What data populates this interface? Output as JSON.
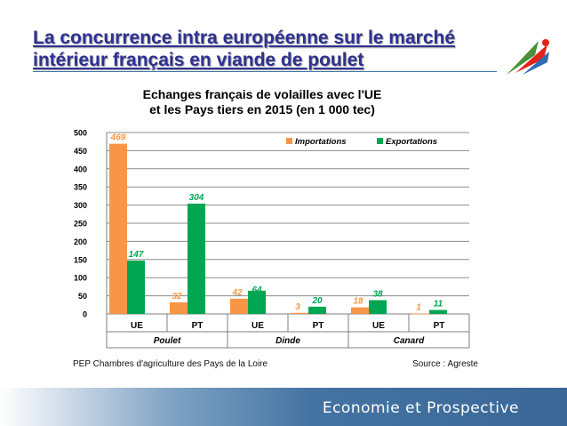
{
  "slide": {
    "title": "La concurrence intra européenne sur le marché intérieur français en viande de poulet",
    "source_left": "PEP Chambres d'agriculture des Pays de la Loire",
    "source_right": "Source : Agreste",
    "banner": "Economie et Prospective"
  },
  "colors": {
    "importations": "#f79646",
    "exportations": "#00a651",
    "title": "#2e3192",
    "banner": "#3a6797"
  },
  "icons": {
    "logo": "chambres-agriculture-logo-icon"
  },
  "chart_data": {
    "type": "bar",
    "title_lines": [
      "Echanges français de volailles avec l'UE",
      "et les Pays tiers en 2015 (en 1 000 tec)"
    ],
    "categories": [
      "UE",
      "PT",
      "UE",
      "PT",
      "UE",
      "PT"
    ],
    "groups": [
      {
        "label": "Poulet",
        "span": [
          0,
          1
        ]
      },
      {
        "label": "Dinde",
        "span": [
          2,
          3
        ]
      },
      {
        "label": "Canard",
        "span": [
          4,
          5
        ]
      }
    ],
    "series": [
      {
        "name": "Importations",
        "values": [
          469,
          32,
          42,
          3,
          18,
          1
        ],
        "color": "#f79646"
      },
      {
        "name": "Exportations",
        "values": [
          147,
          304,
          64,
          20,
          38,
          11
        ],
        "color": "#00a651"
      }
    ],
    "ylim": [
      0,
      500
    ],
    "yticks": [
      0,
      50,
      100,
      150,
      200,
      250,
      300,
      350,
      400,
      450,
      500
    ],
    "grid": true,
    "legend": "top-right",
    "data_labels": true
  }
}
